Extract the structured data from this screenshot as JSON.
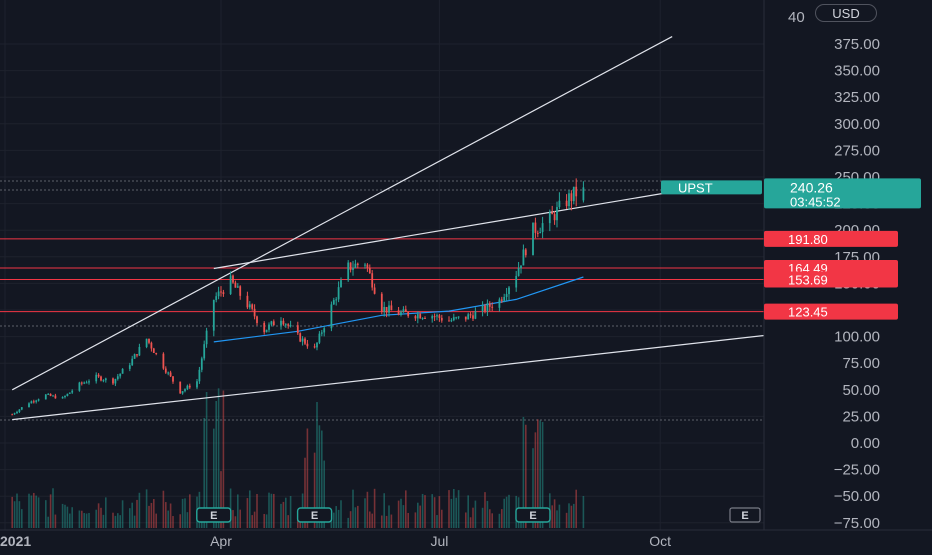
{
  "symbol": "UPST",
  "currency": "USD",
  "last_price": "240.26",
  "countdown": "03:45:52",
  "earnings_badge": "E",
  "colors": {
    "background": "#131722",
    "up": "#26a69a",
    "down": "#ef5350",
    "level_line": "#f23645",
    "ma_line": "#2196f3",
    "trend_line": "#e0e3eb",
    "label_bg": "#f23645",
    "price_tag": "#26a69a"
  },
  "price_axis": {
    "ticks": [
      "375.00",
      "350.00",
      "325.00",
      "300.00",
      "275.00",
      "250.00",
      "225.00",
      "200.00",
      "175.00",
      "150.00",
      "125.00",
      "100.00",
      "75.00",
      "50.00",
      "25.00",
      "0.00",
      "−25.00",
      "−50.00",
      "−75.00"
    ],
    "clipped_top": "40"
  },
  "time_axis": [
    "2021",
    "Apr",
    "Jul",
    "Oct"
  ],
  "levels": [
    {
      "label": "191.80",
      "value": 191.8
    },
    {
      "label": "164.49",
      "value": 164.49
    },
    {
      "label": "153.69",
      "value": 153.69
    },
    {
      "label": "123.45",
      "value": 123.45
    }
  ],
  "chart_data": {
    "type": "candlestick",
    "symbol": "UPST",
    "currency": "USD",
    "x_axis_labels": [
      "2021",
      "Apr",
      "Jul",
      "Oct"
    ],
    "y_range": [
      -75,
      400
    ],
    "last_close": 240.26,
    "horizontal_levels": [
      191.8,
      164.49,
      153.69,
      123.45
    ],
    "close_series_approx": [
      {
        "t": "2021-01-04",
        "c": 27
      },
      {
        "t": "2021-01-11",
        "c": 38
      },
      {
        "t": "2021-01-18",
        "c": 45
      },
      {
        "t": "2021-01-25",
        "c": 42
      },
      {
        "t": "2021-02-01",
        "c": 55
      },
      {
        "t": "2021-02-08",
        "c": 62
      },
      {
        "t": "2021-02-15",
        "c": 58
      },
      {
        "t": "2021-02-22",
        "c": 75
      },
      {
        "t": "2021-03-01",
        "c": 98
      },
      {
        "t": "2021-03-08",
        "c": 72
      },
      {
        "t": "2021-03-15",
        "c": 48
      },
      {
        "t": "2021-03-22",
        "c": 58
      },
      {
        "t": "2021-03-29",
        "c": 135
      },
      {
        "t": "2021-04-05",
        "c": 152
      },
      {
        "t": "2021-04-12",
        "c": 130
      },
      {
        "t": "2021-04-19",
        "c": 106
      },
      {
        "t": "2021-04-26",
        "c": 118
      },
      {
        "t": "2021-05-03",
        "c": 100
      },
      {
        "t": "2021-05-10",
        "c": 88
      },
      {
        "t": "2021-05-17",
        "c": 128
      },
      {
        "t": "2021-05-24",
        "c": 165
      },
      {
        "t": "2021-05-31",
        "c": 170
      },
      {
        "t": "2021-06-07",
        "c": 127
      },
      {
        "t": "2021-06-14",
        "c": 122
      },
      {
        "t": "2021-06-21",
        "c": 121
      },
      {
        "t": "2021-06-28",
        "c": 120
      },
      {
        "t": "2021-07-05",
        "c": 115
      },
      {
        "t": "2021-07-12",
        "c": 118
      },
      {
        "t": "2021-07-19",
        "c": 125
      },
      {
        "t": "2021-07-26",
        "c": 134
      },
      {
        "t": "2021-08-02",
        "c": 160
      },
      {
        "t": "2021-08-09",
        "c": 200
      },
      {
        "t": "2021-08-16",
        "c": 210
      },
      {
        "t": "2021-08-23",
        "c": 228
      },
      {
        "t": "2021-08-30",
        "c": 240.26
      }
    ],
    "moving_average_approx": [
      {
        "t": "2021-03-29",
        "v": 95
      },
      {
        "t": "2021-05-03",
        "v": 105
      },
      {
        "t": "2021-06-07",
        "v": 120
      },
      {
        "t": "2021-07-05",
        "v": 124
      },
      {
        "t": "2021-08-02",
        "v": 135
      },
      {
        "t": "2021-08-30",
        "v": 156
      }
    ],
    "trend_lines": [
      {
        "from": {
          "t": "2021-01-04",
          "p": 50
        },
        "to": {
          "t": "2021-10-06",
          "p": 382
        }
      },
      {
        "from": {
          "t": "2021-03-29",
          "p": 164
        },
        "to": {
          "t": "2021-10-06",
          "p": 236
        }
      },
      {
        "from": {
          "t": "2021-01-04",
          "p": 22
        },
        "to": {
          "t": "2021-12-31",
          "p": 101
        }
      }
    ],
    "earnings_markers": [
      "2021-03-29",
      "2021-05-10",
      "2021-08-09"
    ],
    "volume": "histogram at bottom, peaks near earnings"
  }
}
